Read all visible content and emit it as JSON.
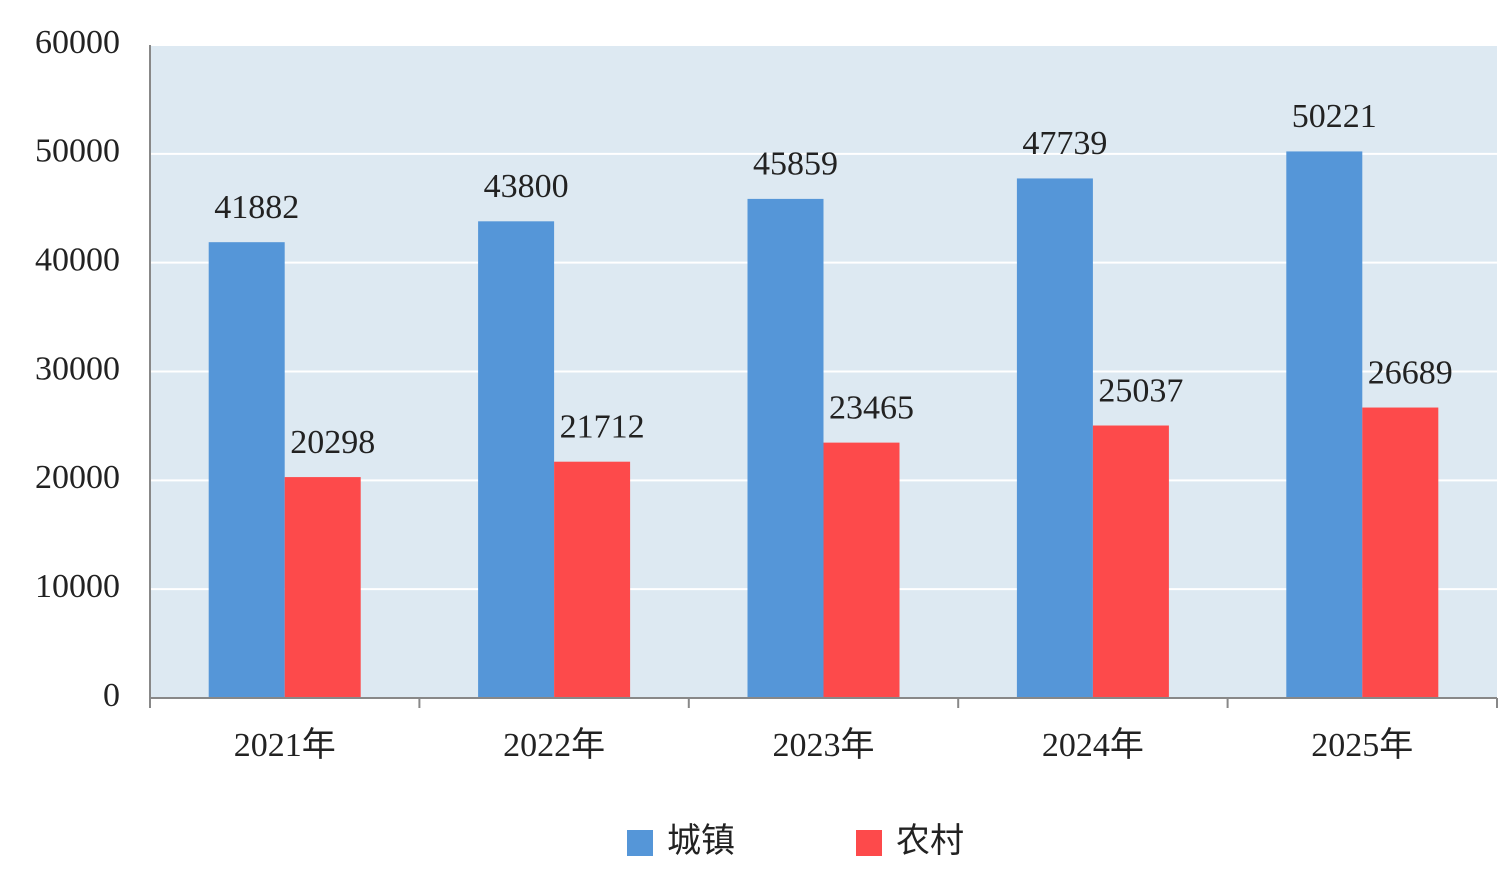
{
  "chart_data": {
    "type": "bar",
    "categories": [
      "2021年",
      "2022年",
      "2023年",
      "2024年",
      "2025年"
    ],
    "series": [
      {
        "name": "城镇",
        "color": "#5596d8",
        "values": [
          41882,
          43800,
          45859,
          47739,
          50221
        ]
      },
      {
        "name": "农村",
        "color": "#fd4a4b",
        "values": [
          20298,
          21712,
          23465,
          25037,
          26689
        ]
      }
    ],
    "ylim": [
      0,
      60000
    ],
    "yticks": [
      0,
      10000,
      20000,
      30000,
      40000,
      50000,
      60000
    ],
    "grid": true,
    "legend": "bottom"
  }
}
